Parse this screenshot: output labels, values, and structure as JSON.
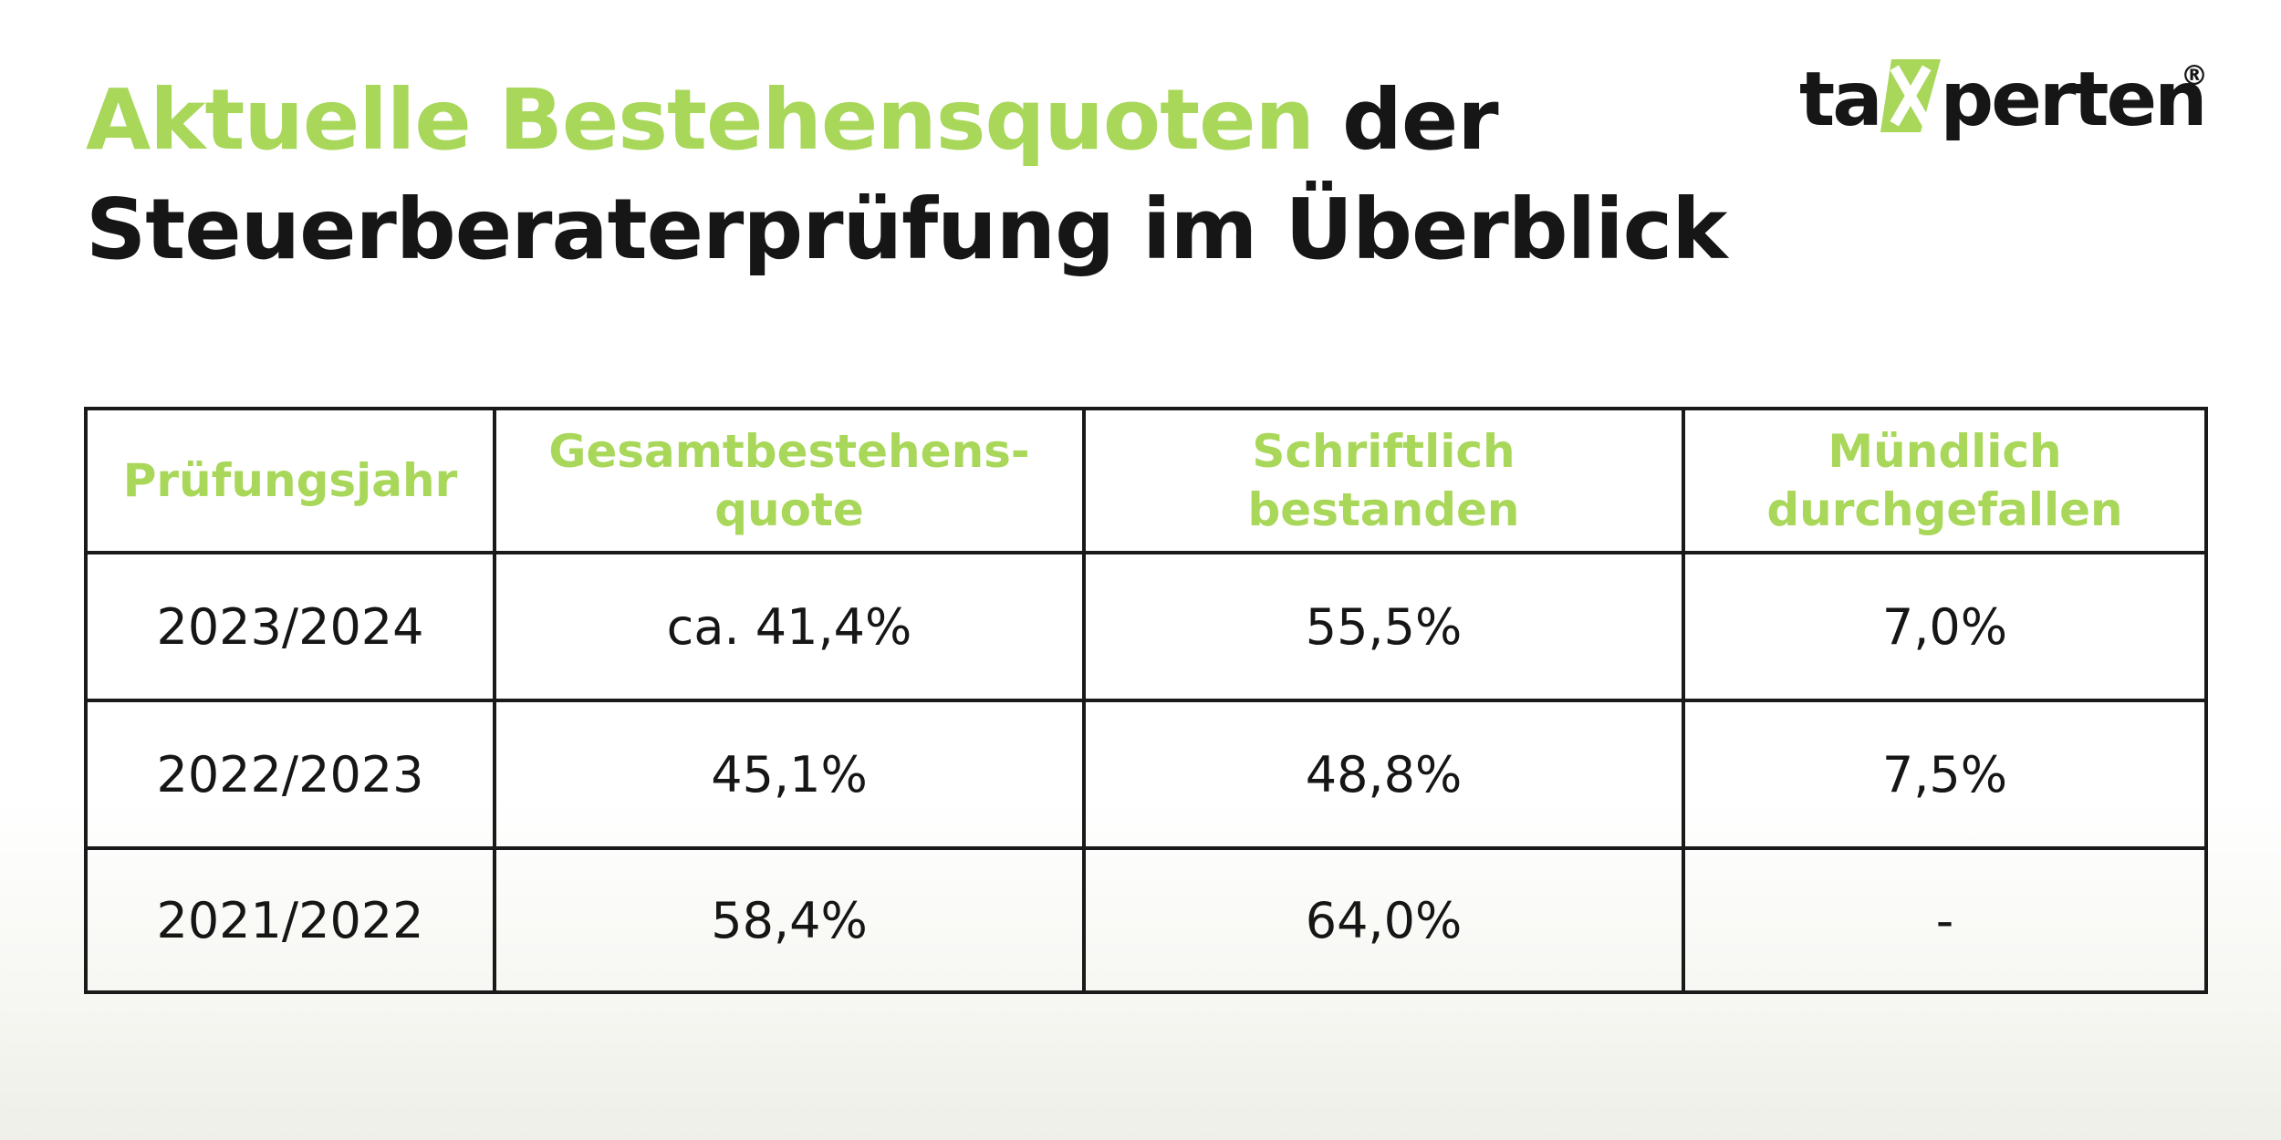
{
  "header": {
    "title_accent": "Aktuelle Bestehensquoten",
    "title_rest_line1": " der",
    "title_line2": "Steuerberaterprüfung im Überblick"
  },
  "logo": {
    "text_before": "ta",
    "mark_letter": "X",
    "text_after": "perten",
    "registered": "®",
    "mark_color": "#a8d75a"
  },
  "table": {
    "columns": [
      "Prüfungsjahr",
      "Gesamtbestehens-\nquote",
      "Schriftlich\nbestanden",
      "Mündlich\ndurchgefallen"
    ],
    "rows": [
      [
        "2023/2024",
        "ca. 41,4%",
        "55,5%",
        "7,0%"
      ],
      [
        "2022/2023",
        "45,1%",
        "48,8%",
        "7,5%"
      ],
      [
        "2021/2022",
        "58,4%",
        "64,0%",
        "-"
      ]
    ]
  },
  "colors": {
    "accent": "#a8d75a",
    "text": "#161616",
    "border": "#1a1a1a"
  }
}
